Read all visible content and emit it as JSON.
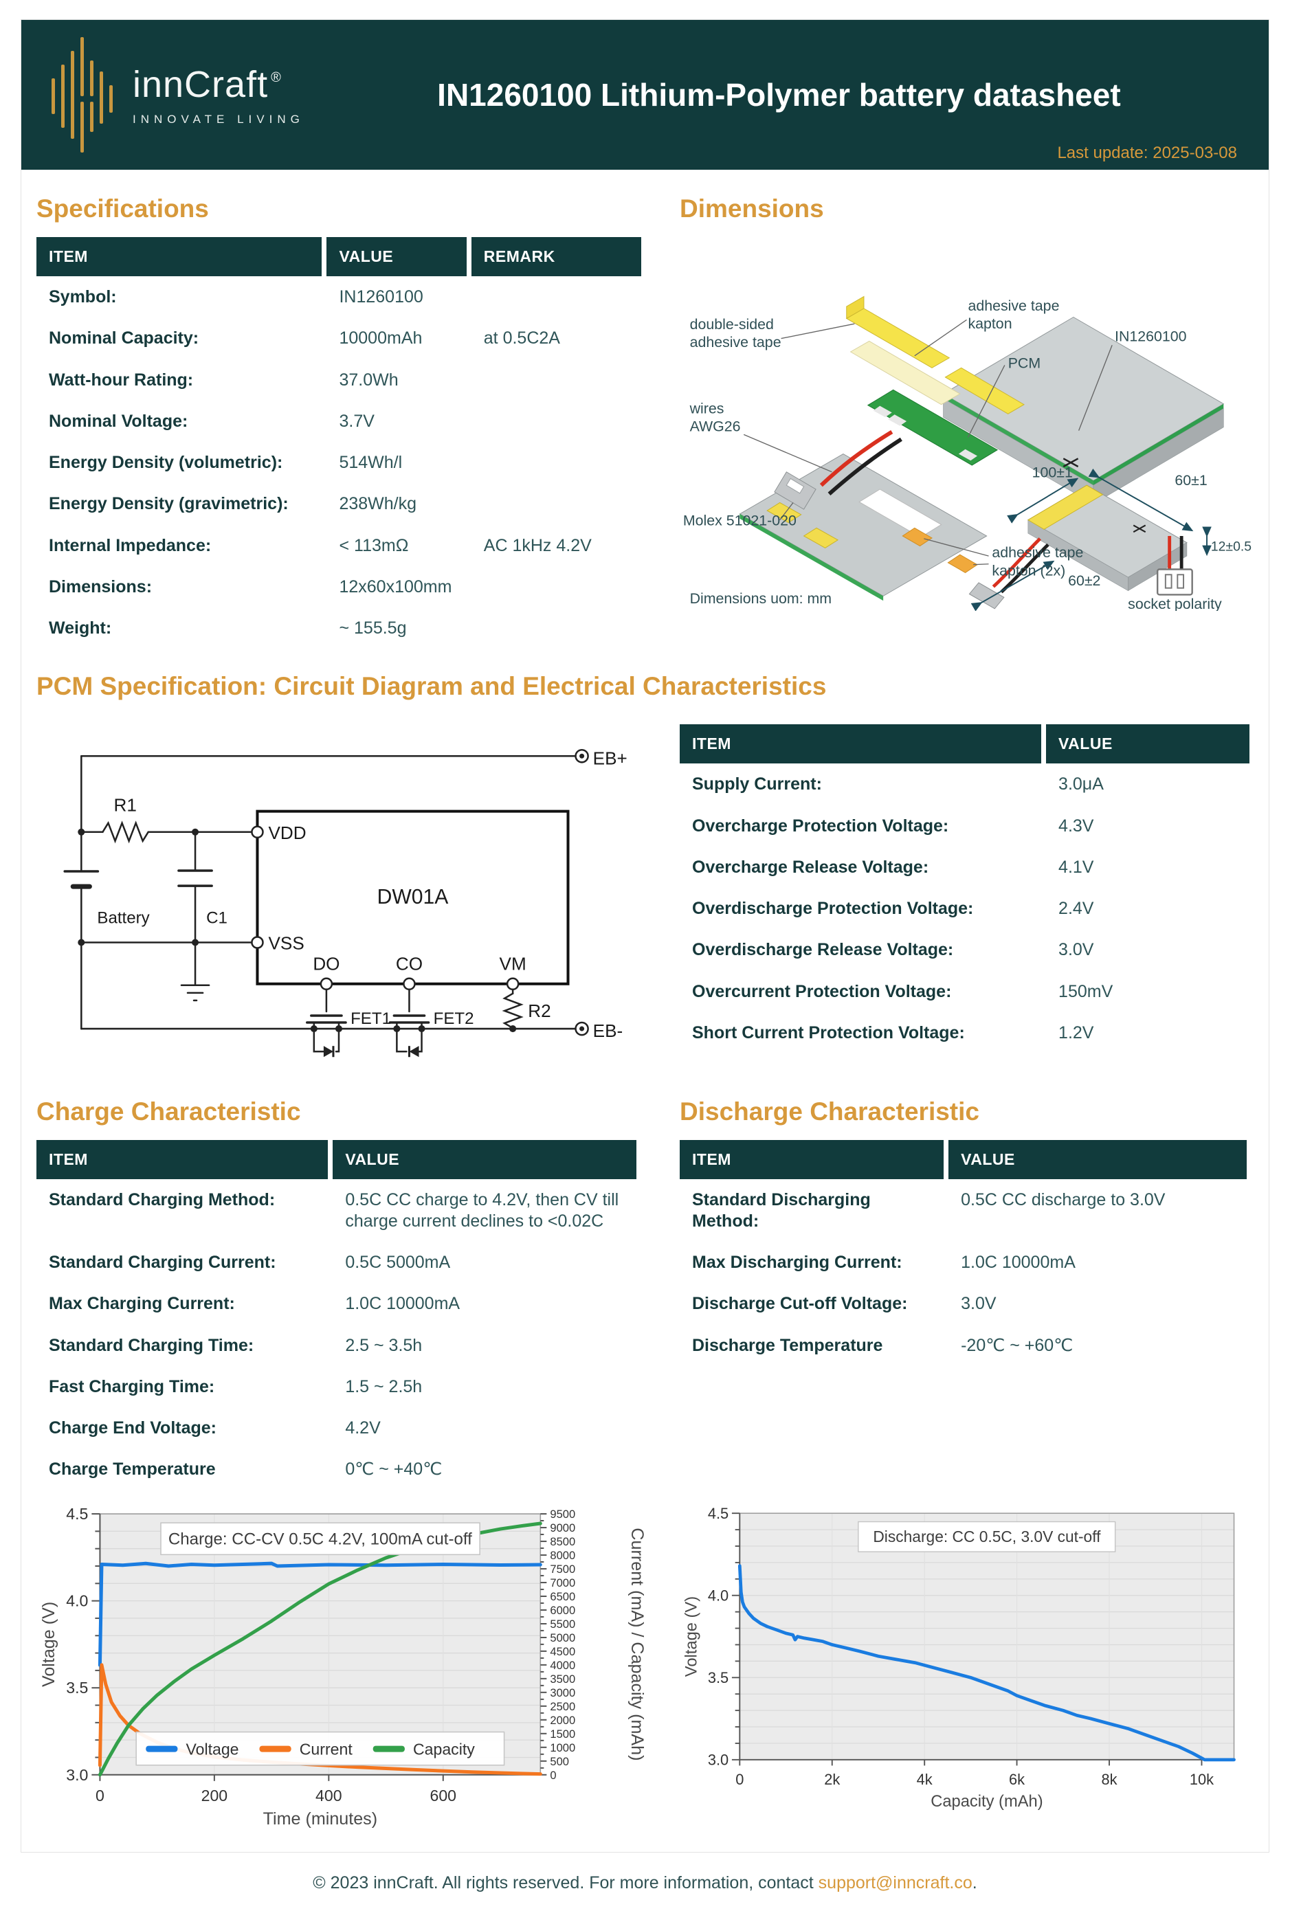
{
  "page": {
    "last_update": "Last update: 2025-03-08",
    "footer_prefix": "© 2023 innCraft. All rights reserved. For more information, contact ",
    "footer_link": "support@inncraft.co",
    "footer_suffix": "."
  },
  "header": {
    "brand": "innCraft",
    "reg": "®",
    "tagline": "INNOVATE LIVING",
    "title": "IN1260100 Lithium-Polymer battery datasheet"
  },
  "colors": {
    "header_teal": "#113b3c",
    "accent_gold": "#d7993b",
    "voltage_blue": "#1a7ce0",
    "current_orange": "#f4761f",
    "capacity_green": "#33a04a"
  },
  "sections": {
    "specifications": {
      "title": "Specifications",
      "columns": [
        "ITEM",
        "VALUE",
        "REMARK"
      ],
      "rows": [
        [
          "Symbol:",
          "IN1260100",
          ""
        ],
        [
          "Nominal Capacity:",
          "10000mAh",
          "at 0.5C2A"
        ],
        [
          "Watt-hour Rating:",
          "37.0Wh",
          ""
        ],
        [
          "Nominal Voltage:",
          "3.7V",
          ""
        ],
        [
          "Energy Density (volumetric):",
          "514Wh/l",
          ""
        ],
        [
          "Energy Density (gravimetric):",
          "238Wh/kg",
          ""
        ],
        [
          "Internal Impedance:",
          "< 113mΩ",
          "AC 1kHz 4.2V"
        ],
        [
          "Dimensions:",
          "12x60x100mm",
          ""
        ],
        [
          "Weight:",
          "~ 155.5g",
          ""
        ]
      ]
    },
    "dimensions": {
      "title": "Dimensions",
      "uom_note": "Dimensions uom: mm",
      "labels": {
        "tape_double_1": "double-sided",
        "tape_double_2": "adhesive tape",
        "kapton_1": "adhesive tape",
        "kapton_2": "kapton",
        "pcm": "PCM",
        "model": "IN1260100",
        "wires_1": "wires",
        "wires_2": "AWG26",
        "molex": "Molex 51021-020",
        "kapton2_1": "adhesive tape",
        "kapton2_2": "kapton (2x)",
        "dim_length": "100±1",
        "dim_width": "60±1",
        "dim_thickness": "12±0.5",
        "dim_wire": "60±2",
        "socket": "socket polarity"
      }
    },
    "pcm": {
      "title": "PCM Specification: Circuit Diagram and Electrical Characteristics",
      "columns": [
        "ITEM",
        "VALUE"
      ],
      "rows": [
        [
          "Supply Current:",
          "3.0μA"
        ],
        [
          "Overcharge Protection Voltage:",
          "4.3V"
        ],
        [
          "Overcharge Release Voltage:",
          "4.1V"
        ],
        [
          "Overdischarge Protection Voltage:",
          "2.4V"
        ],
        [
          "Overdischarge Release Voltage:",
          "3.0V"
        ],
        [
          "Overcurrent Protection Voltage:",
          "150mV"
        ],
        [
          "Short Current Protection Voltage:",
          "1.2V"
        ]
      ],
      "circuit": {
        "r1": "R1",
        "battery": "Battery",
        "c1": "C1",
        "vdd": "VDD",
        "vss": "VSS",
        "chip": "DW01A",
        "do": "DO",
        "co": "CO",
        "vm": "VM",
        "r2": "R2",
        "fet1": "FET1",
        "fet2": "FET2",
        "ebp": "EB+",
        "ebm": "EB-"
      }
    },
    "charge": {
      "title": "Charge Characteristic",
      "columns": [
        "ITEM",
        "VALUE"
      ],
      "rows": [
        [
          "Standard Charging Method:",
          "0.5C CC charge to 4.2V, then CV till charge current declines to <0.02C"
        ],
        [
          "Standard Charging Current:",
          "0.5C 5000mA"
        ],
        [
          "Max Charging Current:",
          "1.0C 10000mA"
        ],
        [
          "Standard Charging Time:",
          "2.5 ~ 3.5h"
        ],
        [
          "Fast Charging Time:",
          "1.5 ~ 2.5h"
        ],
        [
          "Charge End Voltage:",
          "4.2V"
        ],
        [
          "Charge Temperature",
          "0℃ ~ +40℃"
        ]
      ]
    },
    "discharge": {
      "title": "Discharge Characteristic",
      "columns": [
        "ITEM",
        "VALUE"
      ],
      "rows": [
        [
          "Standard Discharging Method:",
          "0.5C CC discharge to 3.0V"
        ],
        [
          "Max Discharging Current:",
          "1.0C 10000mA"
        ],
        [
          "Discharge Cut-off Voltage:",
          "3.0V"
        ],
        [
          "Discharge Temperature",
          "-20℃ ~ +60℃"
        ]
      ]
    }
  },
  "chart_data": [
    {
      "type": "line",
      "title": "Charge: CC-CV 0.5C 4.2V, 100mA cut-off",
      "xlabel": "Time (minutes)",
      "ylabel": "Voltage (V)",
      "y2label": "Current (mA) / Capacity (mAh)",
      "xlim": [
        0,
        770
      ],
      "ylim": [
        3.0,
        4.5
      ],
      "y2lim": [
        0,
        9500
      ],
      "y2step": 500,
      "grid": true,
      "legend_position": "bottom-center",
      "xticks": {
        "values": [
          0,
          200,
          400,
          600
        ],
        "labels": [
          "0",
          "200",
          "400",
          "600"
        ]
      },
      "yticks": {
        "values": [
          3.0,
          3.5,
          4.0,
          4.5
        ],
        "labels": [
          "3.0",
          "3.5",
          "4.0",
          "4.5"
        ]
      },
      "series": [
        {
          "name": "Voltage",
          "axis": "y",
          "color": "#1a7ce0",
          "points": [
            [
              0,
              3.63
            ],
            [
              3,
              4.21
            ],
            [
              40,
              4.205
            ],
            [
              80,
              4.215
            ],
            [
              120,
              4.2
            ],
            [
              160,
              4.21
            ],
            [
              200,
              4.205
            ],
            [
              300,
              4.215
            ],
            [
              310,
              4.2
            ],
            [
              400,
              4.208
            ],
            [
              500,
              4.205
            ],
            [
              600,
              4.21
            ],
            [
              700,
              4.206
            ],
            [
              770,
              4.208
            ]
          ]
        },
        {
          "name": "Current",
          "axis": "y2",
          "color": "#f4761f",
          "points": [
            [
              0,
              350
            ],
            [
              3,
              4000
            ],
            [
              10,
              3300
            ],
            [
              20,
              2650
            ],
            [
              35,
              2150
            ],
            [
              50,
              1800
            ],
            [
              70,
              1500
            ],
            [
              100,
              1180
            ],
            [
              130,
              950
            ],
            [
              160,
              800
            ],
            [
              200,
              650
            ],
            [
              250,
              540
            ],
            [
              300,
              460
            ],
            [
              350,
              395
            ],
            [
              400,
              335
            ],
            [
              450,
              280
            ],
            [
              500,
              230
            ],
            [
              550,
              185
            ],
            [
              600,
              140
            ],
            [
              650,
              100
            ],
            [
              700,
              70
            ],
            [
              740,
              45
            ],
            [
              770,
              30
            ]
          ]
        },
        {
          "name": "Capacity",
          "axis": "y2",
          "color": "#33a04a",
          "points": [
            [
              0,
              0
            ],
            [
              15,
              600
            ],
            [
              30,
              1150
            ],
            [
              50,
              1800
            ],
            [
              75,
              2400
            ],
            [
              100,
              2900
            ],
            [
              130,
              3400
            ],
            [
              160,
              3850
            ],
            [
              200,
              4350
            ],
            [
              250,
              4950
            ],
            [
              300,
              5600
            ],
            [
              350,
              6300
            ],
            [
              400,
              6950
            ],
            [
              450,
              7450
            ],
            [
              500,
              7900
            ],
            [
              550,
              8250
            ],
            [
              600,
              8500
            ],
            [
              650,
              8750
            ],
            [
              700,
              8950
            ],
            [
              740,
              9070
            ],
            [
              770,
              9150
            ]
          ]
        }
      ]
    },
    {
      "type": "line",
      "title": "Discharge: CC 0.5C, 3.0V cut-off",
      "xlabel": "Capacity (mAh)",
      "ylabel": "Voltage (V)",
      "xlim": [
        0,
        10700
      ],
      "ylim": [
        3.0,
        4.5
      ],
      "grid": true,
      "xticks": {
        "values": [
          0,
          2000,
          4000,
          6000,
          8000,
          10000
        ],
        "labels": [
          "0",
          "2k",
          "4k",
          "6k",
          "8k",
          "10k"
        ]
      },
      "yticks": {
        "values": [
          3.0,
          3.5,
          4.0,
          4.5
        ],
        "labels": [
          "3.0",
          "3.5",
          "4.0",
          "4.5"
        ]
      },
      "series": [
        {
          "name": "Voltage",
          "axis": "y",
          "color": "#1a7ce0",
          "points": [
            [
              0,
              4.18
            ],
            [
              30,
              4.02
            ],
            [
              60,
              3.96
            ],
            [
              100,
              3.93
            ],
            [
              200,
              3.89
            ],
            [
              300,
              3.86
            ],
            [
              450,
              3.83
            ],
            [
              600,
              3.81
            ],
            [
              800,
              3.79
            ],
            [
              1000,
              3.77
            ],
            [
              1150,
              3.76
            ],
            [
              1200,
              3.73
            ],
            [
              1250,
              3.75
            ],
            [
              1400,
              3.74
            ],
            [
              1600,
              3.73
            ],
            [
              1800,
              3.72
            ],
            [
              2000,
              3.7
            ],
            [
              2300,
              3.68
            ],
            [
              2600,
              3.66
            ],
            [
              3000,
              3.63
            ],
            [
              3400,
              3.61
            ],
            [
              3800,
              3.59
            ],
            [
              4200,
              3.56
            ],
            [
              4600,
              3.53
            ],
            [
              5000,
              3.5
            ],
            [
              5400,
              3.46
            ],
            [
              5800,
              3.42
            ],
            [
              6000,
              3.39
            ],
            [
              6300,
              3.36
            ],
            [
              6600,
              3.33
            ],
            [
              7000,
              3.3
            ],
            [
              7300,
              3.27
            ],
            [
              7600,
              3.25
            ],
            [
              8000,
              3.22
            ],
            [
              8400,
              3.19
            ],
            [
              8800,
              3.15
            ],
            [
              9200,
              3.11
            ],
            [
              9500,
              3.08
            ],
            [
              9800,
              3.04
            ],
            [
              10000,
              3.01
            ],
            [
              10060,
              3.0
            ],
            [
              10700,
              3.0
            ]
          ]
        }
      ]
    }
  ]
}
